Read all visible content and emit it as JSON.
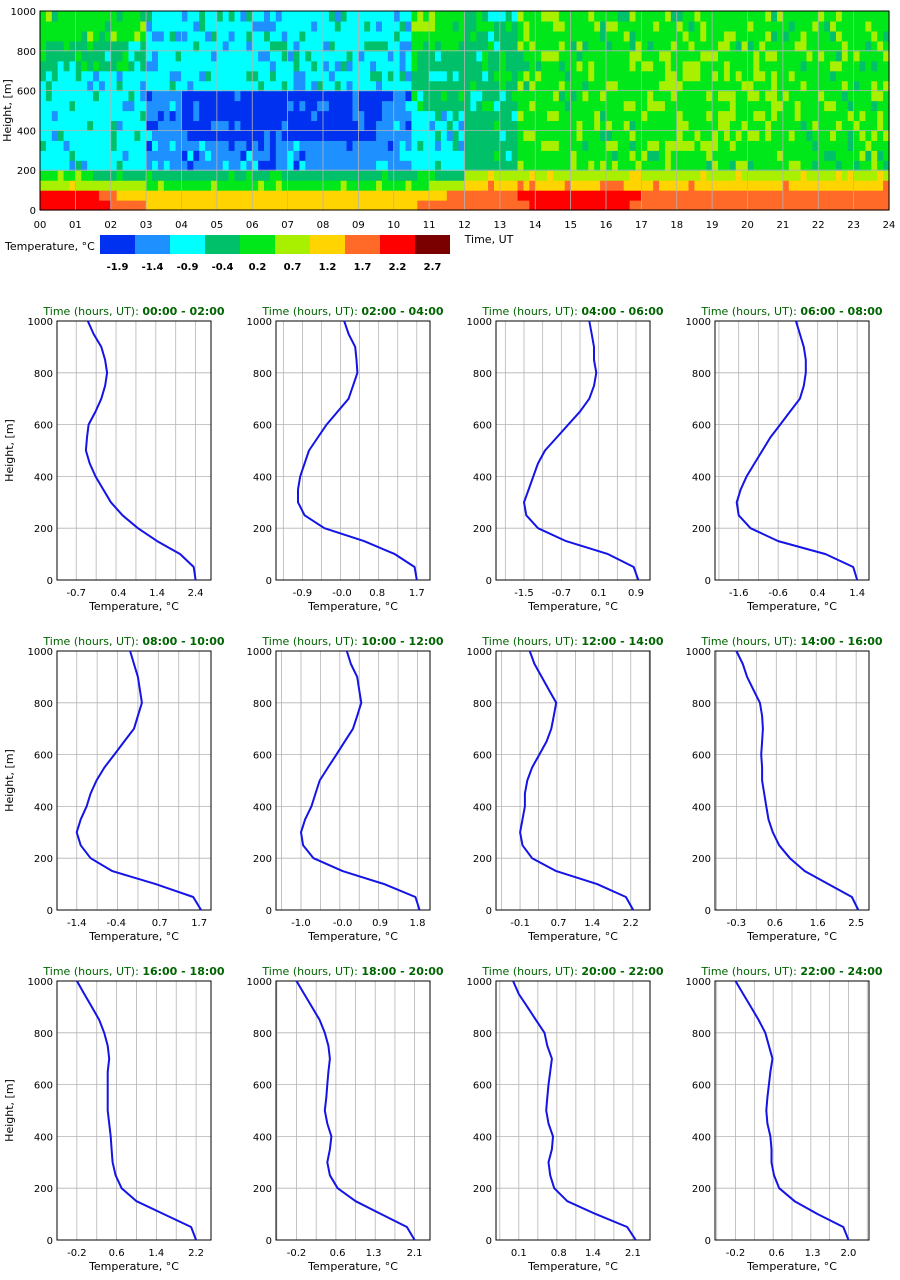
{
  "chart_data": [
    {
      "type": "heatmap",
      "xlabel": "Time, UT",
      "ylabel": "Height, [m]",
      "xlim": [
        0,
        24
      ],
      "ylim": [
        0,
        1000
      ],
      "x_ticks": [
        "00",
        "01",
        "02",
        "03",
        "04",
        "05",
        "06",
        "07",
        "08",
        "09",
        "10",
        "11",
        "12",
        "13",
        "14",
        "15",
        "16",
        "17",
        "18",
        "19",
        "20",
        "21",
        "22",
        "23",
        "24"
      ],
      "y_ticks": [
        "0",
        "200",
        "400",
        "600",
        "800",
        "1000"
      ],
      "grid": true,
      "legend": {
        "title": "Temperature, °C",
        "placement": "bottom-left",
        "labels": [
          "-1.9",
          "-1.4",
          "-0.9",
          "-0.4",
          "0.2",
          "0.7",
          "1.2",
          "1.7",
          "2.2",
          "2.7"
        ],
        "colors": [
          "#0030f0",
          "#1e90ff",
          "#00ffff",
          "#00c06a",
          "#00e81a",
          "#a8f000",
          "#ffd400",
          "#ff6a28",
          "#ff0000",
          "#7a0000"
        ]
      }
    },
    {
      "type": "line",
      "title_label": "Time (hours, UT)",
      "title_time": "00:00 - 02:00",
      "xlabel": "Temperature, °C",
      "ylabel": "Height, [m]",
      "ylim": [
        0,
        1000
      ],
      "xlim": [
        -1.2,
        2.8
      ],
      "x_ticks": [
        "-0.7",
        "0.4",
        "1.4",
        "2.4"
      ],
      "x_tick_values": [
        -0.7,
        0.4,
        1.4,
        2.4
      ],
      "y_ticks": [
        "0",
        "200",
        "400",
        "600",
        "800",
        "1000"
      ],
      "y": [
        0,
        50,
        100,
        150,
        200,
        250,
        300,
        350,
        400,
        450,
        500,
        550,
        600,
        650,
        700,
        750,
        800,
        850,
        900,
        950,
        1000
      ],
      "x": [
        2.4,
        2.35,
        2.0,
        1.4,
        0.9,
        0.5,
        0.2,
        0.0,
        -0.2,
        -0.35,
        -0.45,
        -0.42,
        -0.38,
        -0.2,
        -0.05,
        0.05,
        0.1,
        0.05,
        -0.05,
        -0.25,
        -0.4
      ],
      "color": "#1414e6"
    },
    {
      "type": "line",
      "title_label": "Time (hours, UT)",
      "title_time": "02:00 - 04:00",
      "xlabel": "Temperature, °C",
      "ylabel": "Height, [m]",
      "ylim": [
        0,
        1000
      ],
      "xlim": [
        -1.5,
        2.0
      ],
      "x_ticks": [
        "-0.9",
        "-0.0",
        "0.8",
        "1.7"
      ],
      "x_tick_values": [
        -0.9,
        0.0,
        0.8,
        1.7
      ],
      "y_ticks": [
        "0",
        "200",
        "400",
        "600",
        "800",
        "1000"
      ],
      "y": [
        0,
        50,
        100,
        150,
        200,
        250,
        300,
        350,
        400,
        450,
        500,
        550,
        600,
        650,
        700,
        750,
        800,
        850,
        900,
        950,
        1000
      ],
      "x": [
        1.7,
        1.65,
        1.2,
        0.5,
        -0.4,
        -0.85,
        -1.0,
        -1.0,
        -0.95,
        -0.85,
        -0.75,
        -0.55,
        -0.35,
        -0.1,
        0.15,
        0.25,
        0.35,
        0.33,
        0.3,
        0.15,
        0.05
      ],
      "color": "#1414e6"
    },
    {
      "type": "line",
      "title_label": "Time (hours, UT)",
      "title_time": "04:00 - 06:00",
      "xlabel": "Temperature, °C",
      "ylabel": "Height, [m]",
      "ylim": [
        0,
        1000
      ],
      "xlim": [
        -2.1,
        1.2
      ],
      "x_ticks": [
        "-1.5",
        "-0.7",
        "0.1",
        "0.9"
      ],
      "x_tick_values": [
        -1.5,
        -0.7,
        0.1,
        0.9
      ],
      "y_ticks": [
        "0",
        "200",
        "400",
        "600",
        "800",
        "1000"
      ],
      "y": [
        0,
        50,
        100,
        150,
        200,
        250,
        300,
        350,
        400,
        450,
        500,
        550,
        600,
        650,
        700,
        750,
        800,
        850,
        900,
        950,
        1000
      ],
      "x": [
        0.95,
        0.85,
        0.3,
        -0.6,
        -1.2,
        -1.45,
        -1.5,
        -1.4,
        -1.3,
        -1.2,
        -1.05,
        -0.8,
        -0.55,
        -0.3,
        -0.1,
        0.0,
        0.05,
        0.0,
        0.0,
        -0.05,
        -0.1
      ],
      "color": "#1414e6"
    },
    {
      "type": "line",
      "title_label": "Time (hours, UT)",
      "title_time": "06:00 - 08:00",
      "xlabel": "Temperature, °C",
      "ylabel": "Height, [m]",
      "ylim": [
        0,
        1000
      ],
      "xlim": [
        -2.2,
        1.7
      ],
      "x_ticks": [
        "-1.6",
        "-0.6",
        "0.4",
        "1.4"
      ],
      "x_tick_values": [
        -1.6,
        -0.6,
        0.4,
        1.4
      ],
      "y_ticks": [
        "0",
        "200",
        "400",
        "600",
        "800",
        "1000"
      ],
      "y": [
        0,
        50,
        100,
        150,
        200,
        250,
        300,
        350,
        400,
        450,
        500,
        550,
        600,
        650,
        700,
        750,
        800,
        850,
        900,
        950,
        1000
      ],
      "x": [
        1.4,
        1.3,
        0.6,
        -0.6,
        -1.3,
        -1.6,
        -1.65,
        -1.55,
        -1.4,
        -1.2,
        -1.0,
        -0.8,
        -0.55,
        -0.3,
        -0.05,
        0.05,
        0.1,
        0.1,
        0.05,
        -0.05,
        -0.15
      ],
      "color": "#1414e6"
    },
    {
      "type": "line",
      "title_label": "Time (hours, UT)",
      "title_time": "08:00 - 10:00",
      "xlabel": "Temperature, °C",
      "ylabel": "Height, [m]",
      "ylim": [
        0,
        1000
      ],
      "xlim": [
        -1.9,
        2.0
      ],
      "x_ticks": [
        "-1.4",
        "-0.4",
        "0.7",
        "1.7"
      ],
      "x_tick_values": [
        -1.4,
        -0.4,
        0.7,
        1.7
      ],
      "y_ticks": [
        "0",
        "200",
        "400",
        "600",
        "800",
        "1000"
      ],
      "y": [
        0,
        50,
        100,
        150,
        200,
        250,
        300,
        350,
        400,
        450,
        500,
        550,
        600,
        650,
        700,
        750,
        800,
        850,
        900,
        950,
        1000
      ],
      "x": [
        1.75,
        1.55,
        0.6,
        -0.5,
        -1.05,
        -1.3,
        -1.4,
        -1.3,
        -1.15,
        -1.05,
        -0.9,
        -0.7,
        -0.45,
        -0.2,
        0.05,
        0.15,
        0.25,
        0.2,
        0.15,
        0.05,
        -0.05
      ],
      "color": "#1414e6"
    },
    {
      "type": "line",
      "title_label": "Time (hours, UT)",
      "title_time": "10:00 - 12:00",
      "xlabel": "Temperature, °C",
      "ylabel": "Height, [m]",
      "ylim": [
        0,
        1000
      ],
      "xlim": [
        -1.6,
        2.1
      ],
      "x_ticks": [
        "-1.0",
        "-0.0",
        "0.9",
        "1.8"
      ],
      "x_tick_values": [
        -1.0,
        0.0,
        0.9,
        1.8
      ],
      "y_ticks": [
        "0",
        "200",
        "400",
        "600",
        "800",
        "1000"
      ],
      "y": [
        0,
        50,
        100,
        150,
        200,
        250,
        300,
        350,
        400,
        450,
        500,
        550,
        600,
        650,
        700,
        750,
        800,
        850,
        900,
        950,
        1000
      ],
      "x": [
        1.85,
        1.75,
        1.0,
        0.0,
        -0.7,
        -0.95,
        -1.0,
        -0.9,
        -0.75,
        -0.65,
        -0.55,
        -0.35,
        -0.15,
        0.05,
        0.25,
        0.35,
        0.45,
        0.4,
        0.35,
        0.2,
        0.1
      ],
      "color": "#1414e6"
    },
    {
      "type": "line",
      "title_label": "Time (hours, UT)",
      "title_time": "12:00 - 14:00",
      "xlabel": "Temperature, °C",
      "ylabel": "Height, [m]",
      "ylim": [
        0,
        1000
      ],
      "xlim": [
        -0.6,
        2.6
      ],
      "x_ticks": [
        "-0.1",
        "0.7",
        "1.4",
        "2.2"
      ],
      "x_tick_values": [
        -0.1,
        0.7,
        1.4,
        2.2
      ],
      "y_ticks": [
        "0",
        "200",
        "400",
        "600",
        "800",
        "1000"
      ],
      "y": [
        0,
        50,
        100,
        150,
        200,
        250,
        300,
        350,
        400,
        450,
        500,
        550,
        600,
        650,
        700,
        750,
        800,
        850,
        900,
        950,
        1000
      ],
      "x": [
        2.25,
        2.1,
        1.5,
        0.65,
        0.15,
        -0.05,
        -0.1,
        -0.05,
        0.0,
        0.0,
        0.05,
        0.15,
        0.3,
        0.45,
        0.55,
        0.6,
        0.65,
        0.5,
        0.35,
        0.2,
        0.1
      ],
      "color": "#1414e6"
    },
    {
      "type": "line",
      "title_label": "Time (hours, UT)",
      "title_time": "14:00 - 16:00",
      "xlabel": "Temperature, °C",
      "ylabel": "Height, [m]",
      "ylim": [
        0,
        1000
      ],
      "xlim": [
        -0.8,
        2.8
      ],
      "x_ticks": [
        "-0.3",
        "0.6",
        "1.6",
        "2.5"
      ],
      "x_tick_values": [
        -0.3,
        0.6,
        1.6,
        2.5
      ],
      "y_ticks": [
        "0",
        "200",
        "400",
        "600",
        "800",
        "1000"
      ],
      "y": [
        0,
        50,
        100,
        150,
        200,
        250,
        300,
        350,
        400,
        450,
        500,
        550,
        600,
        650,
        700,
        750,
        800,
        850,
        900,
        950,
        1000
      ],
      "x": [
        2.55,
        2.4,
        1.85,
        1.3,
        0.95,
        0.7,
        0.55,
        0.45,
        0.4,
        0.35,
        0.3,
        0.3,
        0.28,
        0.3,
        0.32,
        0.3,
        0.25,
        0.1,
        -0.05,
        -0.15,
        -0.3
      ],
      "color": "#1414e6"
    },
    {
      "type": "line",
      "title_label": "Time (hours, UT)",
      "title_time": "16:00 - 18:00",
      "xlabel": "Temperature, °C",
      "ylabel": "Height, [m]",
      "ylim": [
        0,
        1000
      ],
      "xlim": [
        -0.6,
        2.5
      ],
      "x_ticks": [
        "-0.2",
        "0.6",
        "1.4",
        "2.2"
      ],
      "x_tick_values": [
        -0.2,
        0.6,
        1.4,
        2.2
      ],
      "y_ticks": [
        "0",
        "200",
        "400",
        "600",
        "800",
        "1000"
      ],
      "y": [
        0,
        50,
        100,
        150,
        200,
        250,
        300,
        350,
        400,
        450,
        500,
        550,
        600,
        650,
        700,
        750,
        800,
        850,
        900,
        950,
        1000
      ],
      "x": [
        2.2,
        2.1,
        1.55,
        1.0,
        0.7,
        0.58,
        0.52,
        0.5,
        0.48,
        0.45,
        0.42,
        0.42,
        0.42,
        0.42,
        0.45,
        0.42,
        0.35,
        0.25,
        0.1,
        -0.05,
        -0.2
      ],
      "color": "#1414e6"
    },
    {
      "type": "line",
      "title_label": "Time (hours, UT)",
      "title_time": "18:00 - 20:00",
      "xlabel": "Temperature, °C",
      "ylabel": "Height, [m]",
      "ylim": [
        0,
        1000
      ],
      "xlim": [
        -0.6,
        2.4
      ],
      "x_ticks": [
        "-0.2",
        "0.6",
        "1.3",
        "2.1"
      ],
      "x_tick_values": [
        -0.2,
        0.6,
        1.3,
        2.1
      ],
      "y_ticks": [
        "0",
        "200",
        "400",
        "600",
        "800",
        "1000"
      ],
      "y": [
        0,
        50,
        100,
        150,
        200,
        250,
        300,
        350,
        400,
        450,
        500,
        550,
        600,
        650,
        700,
        750,
        800,
        850,
        900,
        950,
        1000
      ],
      "x": [
        2.1,
        1.95,
        1.45,
        0.95,
        0.6,
        0.45,
        0.4,
        0.45,
        0.48,
        0.4,
        0.35,
        0.38,
        0.4,
        0.42,
        0.45,
        0.42,
        0.35,
        0.25,
        0.1,
        -0.05,
        -0.2
      ],
      "color": "#1414e6"
    },
    {
      "type": "line",
      "title_label": "Time (hours, UT)",
      "title_time": "20:00 - 22:00",
      "xlabel": "Temperature, °C",
      "ylabel": "Height, [m]",
      "ylim": [
        0,
        1000
      ],
      "xlim": [
        -0.3,
        2.4
      ],
      "x_ticks": [
        "0.1",
        "0.8",
        "1.4",
        "2.1"
      ],
      "x_tick_values": [
        0.1,
        0.8,
        1.4,
        2.1
      ],
      "y_ticks": [
        "0",
        "200",
        "400",
        "600",
        "800",
        "1000"
      ],
      "y": [
        0,
        50,
        100,
        150,
        200,
        250,
        300,
        350,
        400,
        450,
        500,
        550,
        600,
        650,
        700,
        750,
        800,
        850,
        900,
        950,
        1000
      ],
      "x": [
        2.15,
        2.0,
        1.45,
        0.95,
        0.72,
        0.65,
        0.62,
        0.68,
        0.7,
        0.62,
        0.58,
        0.6,
        0.62,
        0.65,
        0.68,
        0.6,
        0.55,
        0.4,
        0.25,
        0.1,
        0.0
      ],
      "color": "#1414e6"
    },
    {
      "type": "line",
      "title_label": "Time (hours, UT)",
      "title_time": "22:00 - 24:00",
      "xlabel": "Temperature, °C",
      "ylabel": "Height, [m]",
      "ylim": [
        0,
        1000
      ],
      "xlim": [
        -0.6,
        2.4
      ],
      "x_ticks": [
        "-0.2",
        "0.6",
        "1.3",
        "2.0"
      ],
      "x_tick_values": [
        -0.2,
        0.6,
        1.3,
        2.0
      ],
      "y_ticks": [
        "0",
        "200",
        "400",
        "600",
        "800",
        "1000"
      ],
      "y": [
        0,
        50,
        100,
        150,
        200,
        250,
        300,
        350,
        400,
        450,
        500,
        550,
        600,
        650,
        700,
        750,
        800,
        850,
        900,
        950,
        1000
      ],
      "x": [
        2.0,
        1.9,
        1.4,
        0.95,
        0.65,
        0.55,
        0.5,
        0.5,
        0.48,
        0.42,
        0.4,
        0.42,
        0.45,
        0.48,
        0.52,
        0.45,
        0.38,
        0.25,
        0.1,
        -0.05,
        -0.2
      ],
      "color": "#1414e6"
    }
  ]
}
